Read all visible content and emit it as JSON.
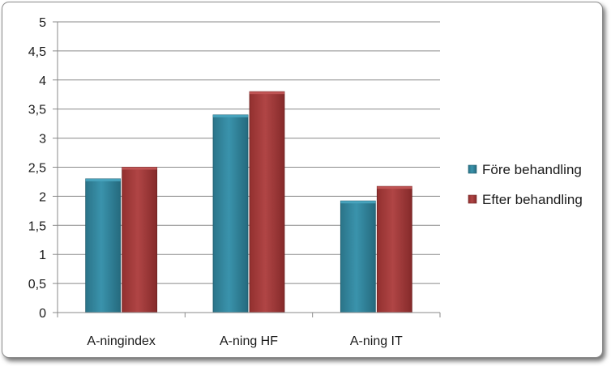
{
  "chart_data": {
    "type": "bar",
    "categories": [
      "A-ningindex",
      "A-ning HF",
      "A-ning IT"
    ],
    "series": [
      {
        "name": "Före behandling",
        "values": [
          2.3,
          3.4,
          1.92
        ],
        "color": "#31849b"
      },
      {
        "name": "Efter behandling",
        "values": [
          2.5,
          3.8,
          2.17
        ],
        "color": "#a33b3a"
      }
    ],
    "ylim": [
      0,
      5
    ],
    "yticks": [
      "0",
      "0,5",
      "1",
      "1,5",
      "2",
      "2,5",
      "3",
      "3,5",
      "4",
      "4,5",
      "5"
    ],
    "grid": true,
    "legend_position": "right",
    "title": "",
    "xlabel": "",
    "ylabel": ""
  }
}
